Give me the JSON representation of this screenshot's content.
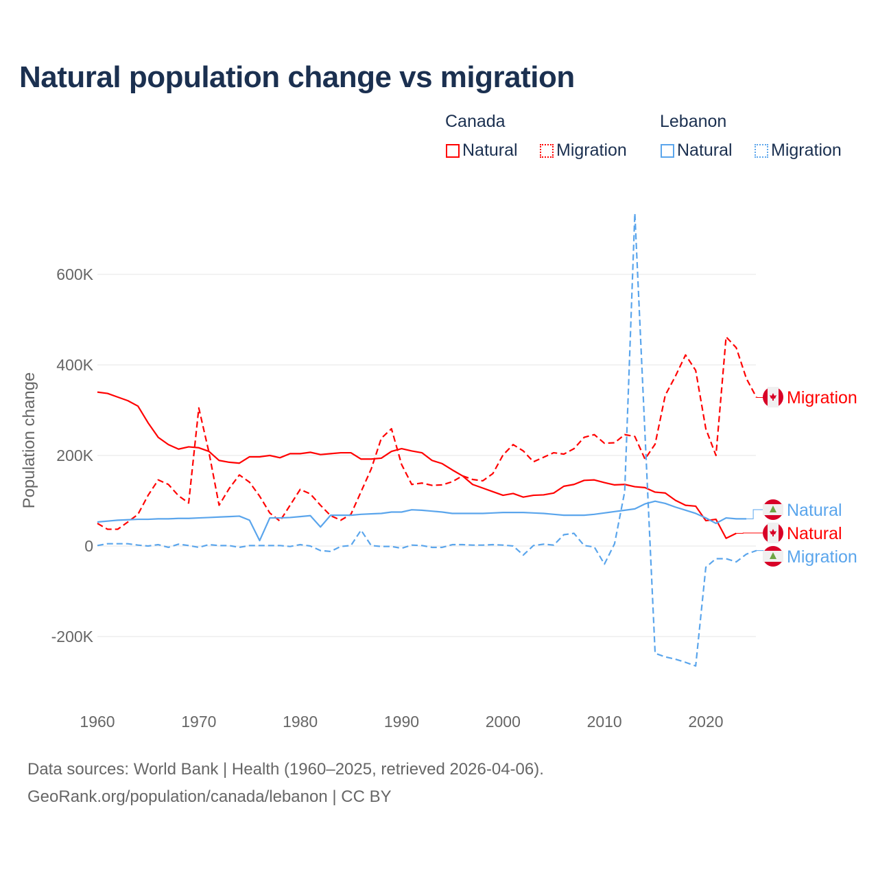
{
  "title": "Natural population change vs migration",
  "legend": {
    "groups": [
      {
        "name": "Canada",
        "items": [
          "Natural",
          "Migration"
        ],
        "color": "#ff0000"
      },
      {
        "name": "Lebanon",
        "items": [
          "Natural",
          "Migration"
        ],
        "color": "#5aa5ec"
      }
    ]
  },
  "footer": {
    "line1": "Data sources: World Bank | Health (1960–2025, retrieved 2026-04-06).",
    "line2": "GeoRank.org/population/canada/lebanon | CC BY"
  },
  "chart_data": {
    "type": "line",
    "title": "Natural population change vs migration",
    "xlabel": "",
    "ylabel": "Population change",
    "xlim": [
      1960,
      2025
    ],
    "ylim": [
      -300000,
      750000
    ],
    "x_ticks": [
      1960,
      1970,
      1980,
      1990,
      2000,
      2010,
      2020
    ],
    "x_tick_labels": [
      "1960",
      "1970",
      "1980",
      "1990",
      "2000",
      "2010",
      "2020"
    ],
    "y_ticks": [
      -200000,
      0,
      200000,
      400000,
      600000
    ],
    "y_tick_labels": [
      "-200K",
      "0",
      "200K",
      "400K",
      "600K"
    ],
    "grid": true,
    "start_year": 1960,
    "series": [
      {
        "name": "Canada Natural",
        "label": "Natural",
        "country": "Canada",
        "color": "#ff0000",
        "dash": false,
        "values": [
          340000,
          337000,
          329000,
          321000,
          309000,
          272000,
          240000,
          224000,
          214000,
          219000,
          217000,
          209000,
          189000,
          185000,
          183000,
          197000,
          197000,
          200000,
          195000,
          204000,
          204000,
          207000,
          202000,
          204000,
          206000,
          206000,
          192000,
          192000,
          194000,
          209000,
          215000,
          210000,
          206000,
          189000,
          182000,
          168000,
          155000,
          136000,
          128000,
          120000,
          112000,
          116000,
          108000,
          112000,
          113000,
          117000,
          132000,
          136000,
          145000,
          146000,
          140000,
          135000,
          136000,
          131000,
          129000,
          119000,
          117000,
          101000,
          90000,
          88000,
          56000,
          59000,
          17000,
          28000
        ]
      },
      {
        "name": "Canada Migration",
        "label": "Migration",
        "country": "Canada",
        "color": "#ff0000",
        "dash": true,
        "values": [
          50000,
          37000,
          37000,
          53000,
          70000,
          112000,
          146000,
          136000,
          111000,
          95000,
          305000,
          207000,
          90000,
          127000,
          157000,
          141000,
          110000,
          73000,
          55000,
          90000,
          125000,
          115000,
          90000,
          67000,
          57000,
          70000,
          120000,
          170000,
          238000,
          259000,
          180000,
          136000,
          139000,
          134000,
          135000,
          142000,
          155000,
          147000,
          144000,
          160000,
          201000,
          224000,
          210000,
          186000,
          196000,
          206000,
          203000,
          215000,
          240000,
          246000,
          227000,
          228000,
          246000,
          242000,
          192000,
          225000,
          333000,
          375000,
          422000,
          388000,
          259000,
          200000,
          462000,
          438000,
          370000,
          328000
        ]
      },
      {
        "name": "Lebanon Natural",
        "label": "Natural",
        "country": "Lebanon",
        "color": "#5aa5ec",
        "dash": false,
        "values": [
          53000,
          55000,
          57000,
          58000,
          59000,
          59000,
          60000,
          60000,
          61000,
          61000,
          62000,
          63000,
          64000,
          65000,
          66000,
          57000,
          12000,
          62000,
          62000,
          63000,
          65000,
          67000,
          42000,
          68000,
          68000,
          68000,
          70000,
          71000,
          72000,
          75000,
          75000,
          80000,
          79000,
          77000,
          75000,
          72000,
          72000,
          72000,
          72000,
          73000,
          74000,
          74000,
          74000,
          73000,
          72000,
          70000,
          68000,
          68000,
          68000,
          70000,
          73000,
          76000,
          79000,
          82000,
          93000,
          99000,
          94000,
          86000,
          79000,
          72000,
          62000,
          50000,
          62000,
          60000,
          60000
        ]
      },
      {
        "name": "Lebanon Migration",
        "label": "Migration",
        "country": "Lebanon",
        "color": "#5aa5ec",
        "dash": true,
        "values": [
          1000,
          5000,
          5000,
          5000,
          2000,
          0,
          3000,
          -3000,
          4000,
          1000,
          -3000,
          3000,
          1000,
          1000,
          -3000,
          1000,
          1000,
          1000,
          1000,
          -1000,
          3000,
          0,
          -10000,
          -12000,
          -1000,
          1000,
          35000,
          1000,
          -1000,
          -1000,
          -5000,
          2000,
          1000,
          -3000,
          -3000,
          3000,
          3000,
          2000,
          2000,
          3000,
          2000,
          0,
          -20000,
          1000,
          4000,
          2000,
          25000,
          28000,
          1000,
          -2000,
          -40000,
          5000,
          120000,
          735000,
          248000,
          -237000,
          -245000,
          -250000,
          -257000,
          -265000,
          -47000,
          -28000,
          -28000,
          -35000,
          -18000,
          -10000
        ]
      }
    ]
  }
}
